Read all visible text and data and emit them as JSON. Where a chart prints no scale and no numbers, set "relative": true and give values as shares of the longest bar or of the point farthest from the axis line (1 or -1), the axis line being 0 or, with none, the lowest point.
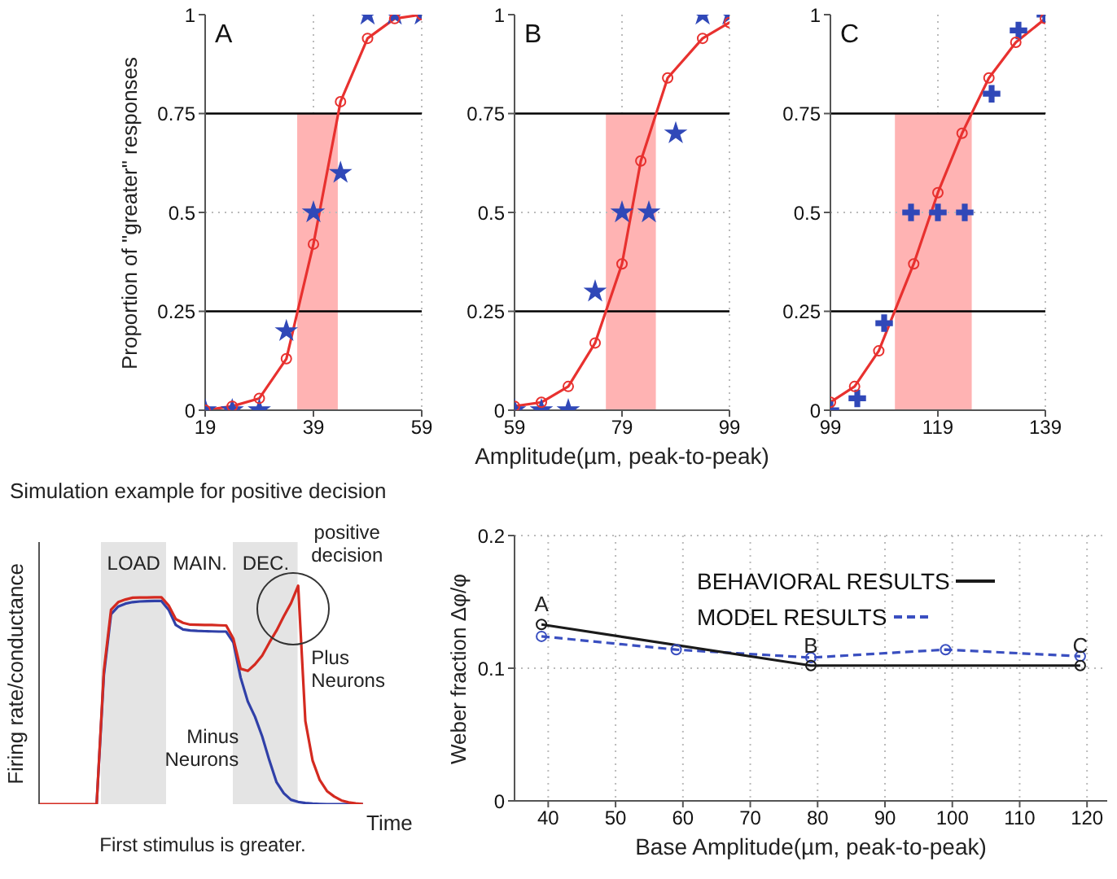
{
  "chart_data": [
    {
      "type": "line",
      "title": "A",
      "ylabel": "Proportion of \"greater\" responses",
      "x": [
        19,
        24,
        29,
        34,
        39,
        44,
        49,
        54,
        59
      ],
      "xlim": [
        19,
        59
      ],
      "xticks": [
        19,
        39,
        59
      ],
      "ylim": [
        0,
        1
      ],
      "yticks": [
        0,
        0.25,
        0.5,
        0.75,
        1
      ],
      "grid": "x",
      "series": [
        {
          "color": "#e8312f",
          "values": [
            0,
            0.01,
            0.03,
            0.13,
            0.42,
            0.78,
            0.94,
            0.99,
            1
          ],
          "marker": "circle"
        },
        {
          "type": "scatter",
          "color": "#3048b8",
          "values": [
            0,
            0,
            0,
            0.2,
            0.5,
            0.6,
            1,
            1,
            1
          ],
          "marker": "star"
        }
      ],
      "ref_lines": [
        {
          "axis": "y",
          "value": 0.25,
          "color": "#000000"
        },
        {
          "axis": "y",
          "value": 0.5,
          "color": "#bbbbbb",
          "line_style": "dotted"
        },
        {
          "axis": "y",
          "value": 0.75,
          "color": "#000000"
        }
      ],
      "bands": [
        {
          "axis": "x",
          "from": 36,
          "to": 43.5,
          "color": "#ffb3b3"
        }
      ]
    },
    {
      "type": "line",
      "title": "B",
      "xlabel": "Amplitude(µm, peak-to-peak)",
      "xlim": [
        59,
        99
      ],
      "xticks": [
        59,
        79,
        99
      ],
      "ylim": [
        0,
        1
      ],
      "yticks": [
        0,
        0.25,
        0.5,
        0.75,
        1
      ],
      "grid": "x",
      "series": [
        {
          "color": "#e8312f",
          "x": [
            59,
            64,
            69,
            74,
            79,
            82.5,
            87.5,
            94,
            99
          ],
          "values": [
            0.01,
            0.02,
            0.06,
            0.17,
            0.37,
            0.63,
            0.84,
            0.94,
            0.98
          ],
          "marker": "circle"
        },
        {
          "type": "scatter",
          "color": "#3048b8",
          "x": [
            59,
            64,
            69,
            74,
            79,
            84,
            89,
            94,
            99
          ],
          "values": [
            0,
            0,
            0,
            0.3,
            0.5,
            0.5,
            0.7,
            1,
            1
          ],
          "marker": "star"
        }
      ],
      "ref_lines": [
        {
          "axis": "y",
          "value": 0.25,
          "color": "#000000"
        },
        {
          "axis": "y",
          "value": 0.5,
          "color": "#bbbbbb",
          "line_style": "dotted"
        },
        {
          "axis": "y",
          "value": 0.75,
          "color": "#000000"
        }
      ],
      "bands": [
        {
          "axis": "x",
          "from": 76,
          "to": 85.3,
          "color": "#ffb3b3"
        }
      ]
    },
    {
      "type": "line",
      "title": "C",
      "xlim": [
        99,
        139
      ],
      "xticks": [
        99,
        119,
        139
      ],
      "ylim": [
        0,
        1
      ],
      "yticks": [
        0,
        0.25,
        0.5,
        0.75,
        1
      ],
      "grid": "x",
      "series": [
        {
          "color": "#e8312f",
          "x": [
            99,
            103.5,
            108,
            114.5,
            119,
            123.5,
            128.5,
            133.5,
            139
          ],
          "values": [
            0.02,
            0.06,
            0.15,
            0.37,
            0.55,
            0.7,
            0.84,
            0.93,
            0.99
          ],
          "marker": "circle"
        },
        {
          "type": "scatter",
          "color": "#3048b8",
          "x": [
            99,
            104,
            109,
            114,
            119,
            124,
            129,
            134,
            139
          ],
          "values": [
            0,
            0.03,
            0.22,
            0.5,
            0.5,
            0.5,
            0.8,
            0.96,
            1
          ],
          "marker": "cross"
        }
      ],
      "ref_lines": [
        {
          "axis": "y",
          "value": 0.25,
          "color": "#000000"
        },
        {
          "axis": "y",
          "value": 0.5,
          "color": "#bbbbbb",
          "line_style": "dotted"
        },
        {
          "axis": "y",
          "value": 0.75,
          "color": "#000000"
        }
      ],
      "bands": [
        {
          "axis": "x",
          "from": 111,
          "to": 125.3,
          "color": "#ffb3b3"
        }
      ]
    },
    {
      "type": "line",
      "relative": true,
      "title": "Simulation example for positive decision",
      "xlabel": "Time",
      "ylabel": "Firing rate/conductance",
      "tick_labels": false,
      "marker": "none",
      "legend": false,
      "categories": [
        null,
        null,
        null,
        null,
        null,
        null,
        null,
        null,
        null,
        null,
        null,
        null,
        null,
        null,
        null,
        null,
        null,
        null,
        null,
        null,
        null,
        null,
        null,
        null,
        null,
        null,
        null,
        null,
        null,
        null,
        null,
        null,
        null,
        null,
        null,
        null,
        null,
        null,
        null,
        null,
        null,
        null,
        null,
        null,
        null,
        null,
        null,
        null,
        null,
        null,
        null
      ],
      "series": [
        {
          "name": "Plus Neurons",
          "color": "#d42a20",
          "values": [
            0,
            0,
            0,
            0,
            0,
            0,
            0,
            0,
            0,
            0.61,
            0.89,
            0.925,
            0.937,
            0.945,
            0.946,
            0.946,
            0.947,
            0.947,
            0.91,
            0.847,
            0.83,
            0.822,
            0.821,
            0.82,
            0.82,
            0.819,
            0.818,
            0.757,
            0.62,
            0.61,
            0.64,
            0.68,
            0.74,
            0.795,
            0.86,
            0.92,
            1,
            0.38,
            0.2,
            0.11,
            0.06,
            0.035,
            0.017,
            0.008,
            0.003,
            0,
            null,
            null,
            null,
            null,
            null
          ]
        },
        {
          "name": "Minus Neurons",
          "color": "#3040a8",
          "values": [
            null,
            null,
            null,
            null,
            null,
            null,
            null,
            null,
            0,
            0.59,
            0.87,
            0.905,
            0.918,
            0.925,
            0.928,
            0.929,
            0.93,
            0.93,
            0.89,
            0.82,
            0.8,
            0.795,
            0.793,
            0.792,
            0.791,
            0.79,
            0.79,
            0.74,
            0.58,
            0.47,
            0.4,
            0.31,
            0.2,
            0.1,
            0.05,
            0.02,
            0.01,
            0.005,
            0.002,
            0.001,
            0,
            0,
            0,
            0,
            0,
            0,
            null,
            null,
            null,
            null,
            null
          ]
        }
      ],
      "annotations": [
        "LOAD",
        "MAIN.",
        "DEC.",
        "positive decision",
        "First stimulus is greater."
      ]
    },
    {
      "type": "line",
      "xlabel": "Base Amplitude(µm, peak-to-peak)",
      "ylabel": "Weber fraction Δφ/φ",
      "xlim": [
        35,
        123
      ],
      "xticks": [
        40,
        50,
        60,
        70,
        80,
        90,
        100,
        110,
        120
      ],
      "ylim": [
        0,
        0.2
      ],
      "yticks": [
        0,
        0.1,
        0.2
      ],
      "grid": true,
      "legend": "top",
      "marker": "circle",
      "series": [
        {
          "name": "BEHAVIORAL RESULTS",
          "color": "#1a1a1a",
          "x": [
            39,
            79,
            119
          ],
          "values": [
            0.133,
            0.102,
            0.102
          ]
        },
        {
          "name": "MODEL RESULTS",
          "color": "#3a4fc0",
          "x": [
            39,
            59,
            79,
            99,
            119
          ],
          "values": [
            0.124,
            0.114,
            0.108,
            0.114,
            0.109
          ],
          "line_style": "dashed"
        }
      ],
      "annotations": [
        {
          "text": "A",
          "x": 39,
          "y": 0.133
        },
        {
          "text": "B",
          "x": 79,
          "y": 0.102
        },
        {
          "text": "C",
          "x": 119,
          "y": 0.102
        }
      ]
    }
  ]
}
